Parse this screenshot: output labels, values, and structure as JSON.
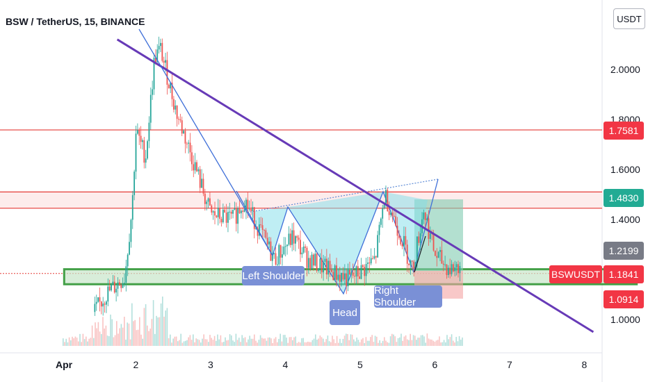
{
  "header": {
    "title": "BSW / TetherUS, 15, BINANCE"
  },
  "axis": {
    "currency": "USDT",
    "y_ticks": [
      "2.0000",
      "1.8000",
      "1.6000",
      "1.4000",
      "1.0000"
    ],
    "x_ticks": [
      "Apr",
      "2",
      "3",
      "4",
      "5",
      "6",
      "7",
      "8"
    ]
  },
  "badges": {
    "r1": "1.7581",
    "r2": "1.4830",
    "level": "1.2199",
    "symbol": "BSWUSDT",
    "price": "1.1841",
    "stop": "1.0914"
  },
  "pattern": {
    "left_shoulder": "Left Shoulder",
    "head": "Head",
    "right_shoulder": "Right Shoulder"
  },
  "colors": {
    "up": "#26a69a",
    "down": "#ef5350",
    "trendline": "#673ab7",
    "resistance": "#e53935",
    "support_zone": "#43a047",
    "price_badge": "#f23645",
    "r2_badge": "#22ab94",
    "level_badge": "#787b86"
  },
  "chart_data": {
    "type": "candlestick",
    "title": "BSW / TetherUS, 15, BINANCE",
    "x_range": [
      "Apr 1",
      "Apr 8"
    ],
    "y_range": [
      0.92,
      2.15
    ],
    "price_path": [
      {
        "day": 0.45,
        "price": 1.03
      },
      {
        "day": 0.6,
        "price": 1.1
      },
      {
        "day": 0.85,
        "price": 1.17
      },
      {
        "day": 0.95,
        "price": 1.45
      },
      {
        "day": 1.0,
        "price": 1.75
      },
      {
        "day": 1.13,
        "price": 1.65
      },
      {
        "day": 1.25,
        "price": 2.05
      },
      {
        "day": 1.33,
        "price": 2.08
      },
      {
        "day": 1.55,
        "price": 1.82
      },
      {
        "day": 1.75,
        "price": 1.65
      },
      {
        "day": 2.0,
        "price": 1.42
      },
      {
        "day": 2.3,
        "price": 1.4
      },
      {
        "day": 2.45,
        "price": 1.48
      },
      {
        "day": 2.85,
        "price": 1.24
      },
      {
        "day": 3.1,
        "price": 1.33
      },
      {
        "day": 3.3,
        "price": 1.24
      },
      {
        "day": 3.7,
        "price": 1.18
      },
      {
        "day": 3.85,
        "price": 1.16
      },
      {
        "day": 4.0,
        "price": 1.19
      },
      {
        "day": 4.2,
        "price": 1.24
      },
      {
        "day": 4.33,
        "price": 1.5
      },
      {
        "day": 4.55,
        "price": 1.33
      },
      {
        "day": 4.7,
        "price": 1.2
      },
      {
        "day": 4.85,
        "price": 1.44
      },
      {
        "day": 5.0,
        "price": 1.26
      },
      {
        "day": 5.2,
        "price": 1.2
      },
      {
        "day": 5.35,
        "price": 1.22
      }
    ],
    "horizontal_levels": [
      1.7581,
      1.51,
      1.445,
      1.2199,
      1.1841,
      1.0914
    ],
    "support_zone": [
      1.141,
      1.201
    ],
    "trendline": [
      {
        "day": 0.75,
        "price": 2.12
      },
      {
        "day": 7.5,
        "price": 0.95
      }
    ],
    "annotations": [
      "Left Shoulder",
      "Head",
      "Right Shoulder"
    ]
  }
}
